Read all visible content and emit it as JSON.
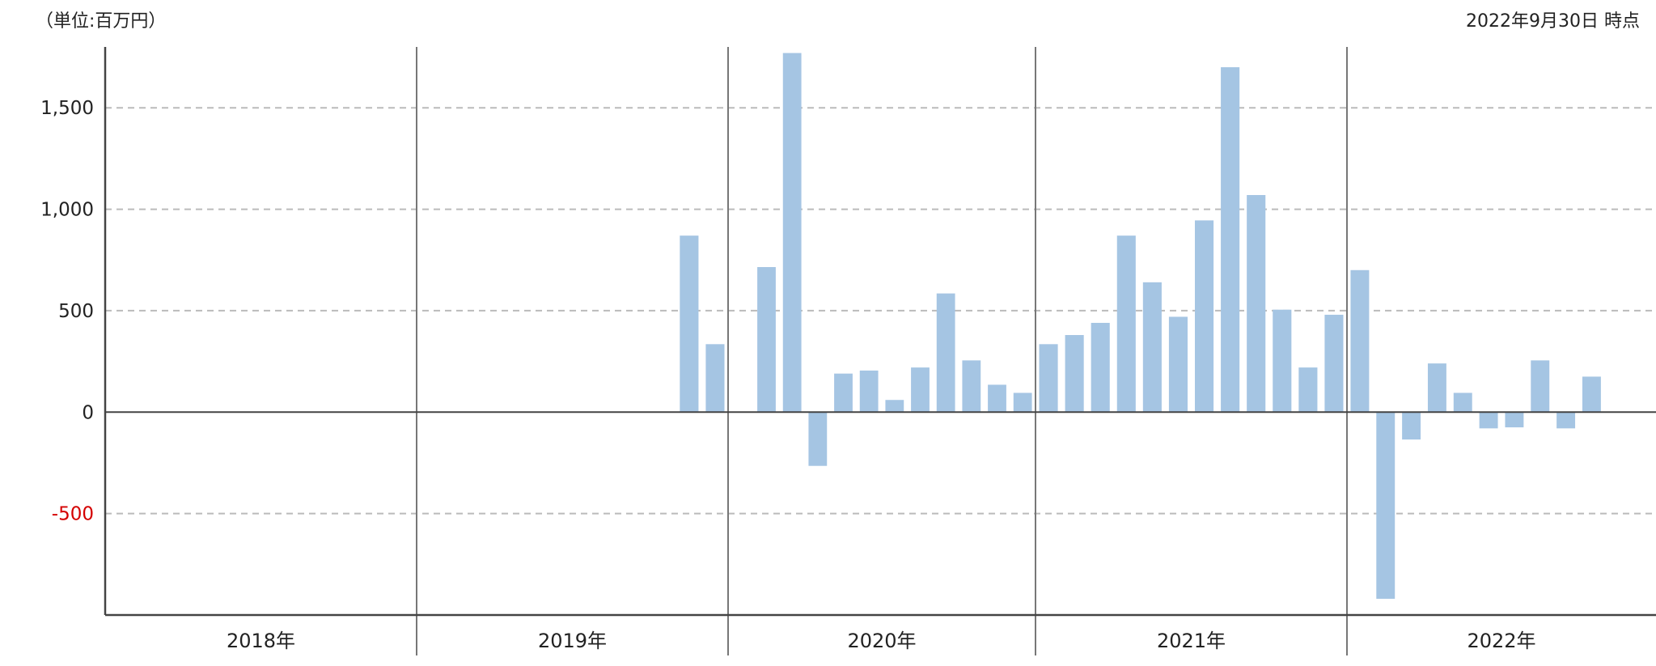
{
  "header": {
    "unit_label": "（単位:百万円）",
    "as_of_label": "2022年9月30日 時点"
  },
  "colors": {
    "bar": "#a5c5e3",
    "axis": "#444444",
    "grid": "#bbbbbb",
    "negative_tick": "#d40000"
  },
  "chart_data": {
    "type": "bar",
    "ylim": [
      -1000,
      1800
    ],
    "yticks": [
      {
        "value": 1500,
        "label": "1,500"
      },
      {
        "value": 1000,
        "label": "1,000"
      },
      {
        "value": 500,
        "label": "500"
      },
      {
        "value": 0,
        "label": "0"
      },
      {
        "value": -500,
        "label": "-500"
      }
    ],
    "grid": "dashed horizontal",
    "years": [
      "2018年",
      "2019年",
      "2020年",
      "2021年",
      "2022年"
    ],
    "months_per_year": [
      12,
      12,
      12,
      12,
      12
    ],
    "values": [
      null,
      null,
      null,
      null,
      null,
      null,
      null,
      null,
      null,
      null,
      null,
      null,
      null,
      null,
      null,
      null,
      null,
      null,
      null,
      null,
      null,
      null,
      870,
      335,
      null,
      715,
      1770,
      -265,
      190,
      205,
      60,
      220,
      585,
      255,
      135,
      95,
      335,
      380,
      440,
      870,
      640,
      470,
      945,
      1700,
      1070,
      505,
      220,
      480,
      700,
      -920,
      -135,
      240,
      95,
      -80,
      -75,
      255,
      -80,
      175,
      null,
      null
    ]
  }
}
